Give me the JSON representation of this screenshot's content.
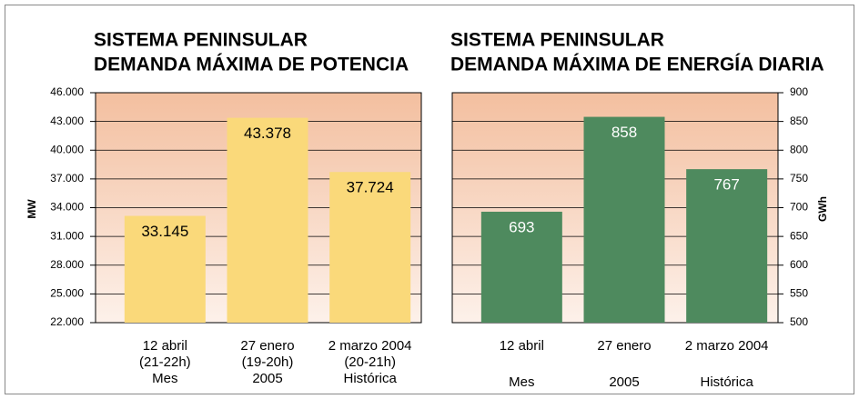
{
  "chart_data": [
    {
      "type": "bar",
      "title": [
        "SISTEMA PENINSULAR",
        "DEMANDA MÁXIMA DE POTENCIA"
      ],
      "ylabel": "MW",
      "categories": [
        [
          "12 abril",
          "(21-22h)",
          "Mes"
        ],
        [
          "27 enero",
          "(19-20h)",
          "2005"
        ],
        [
          "2 marzo 2004",
          "(20-21h)",
          "Histórica"
        ]
      ],
      "values": [
        33145,
        43378,
        37724
      ],
      "value_labels": [
        "33.145",
        "43.378",
        "37.724"
      ],
      "color": "#fad97a",
      "label_color": "#000000",
      "axis_side": "left",
      "ylim": [
        22000,
        46000
      ],
      "yticks": [
        {
          "value": 22000,
          "label": "22.000"
        },
        {
          "value": 25000,
          "label": "25.000"
        },
        {
          "value": 28000,
          "label": "28.000"
        },
        {
          "value": 31000,
          "label": "31.000"
        },
        {
          "value": 34000,
          "label": "34.000"
        },
        {
          "value": 37000,
          "label": "37.000"
        },
        {
          "value": 40000,
          "label": "40.000"
        },
        {
          "value": 43000,
          "label": "43.000"
        },
        {
          "value": 46000,
          "label": "46.000"
        }
      ],
      "grid": true
    },
    {
      "type": "bar",
      "title": [
        "SISTEMA PENINSULAR",
        "DEMANDA MÁXIMA DE ENERGÍA DIARIA"
      ],
      "ylabel": "GWh",
      "categories": [
        [
          "12 abril",
          "Mes"
        ],
        [
          "27 enero",
          "2005"
        ],
        [
          "2 marzo 2004",
          "Histórica"
        ]
      ],
      "values": [
        693,
        858,
        767
      ],
      "color": "#4e8a5e",
      "label_color": "#ffffff",
      "axis_side": "right",
      "ylim": [
        500,
        900
      ],
      "yticks": [
        500,
        550,
        600,
        650,
        700,
        750,
        800,
        850,
        900
      ],
      "grid": true
    }
  ]
}
